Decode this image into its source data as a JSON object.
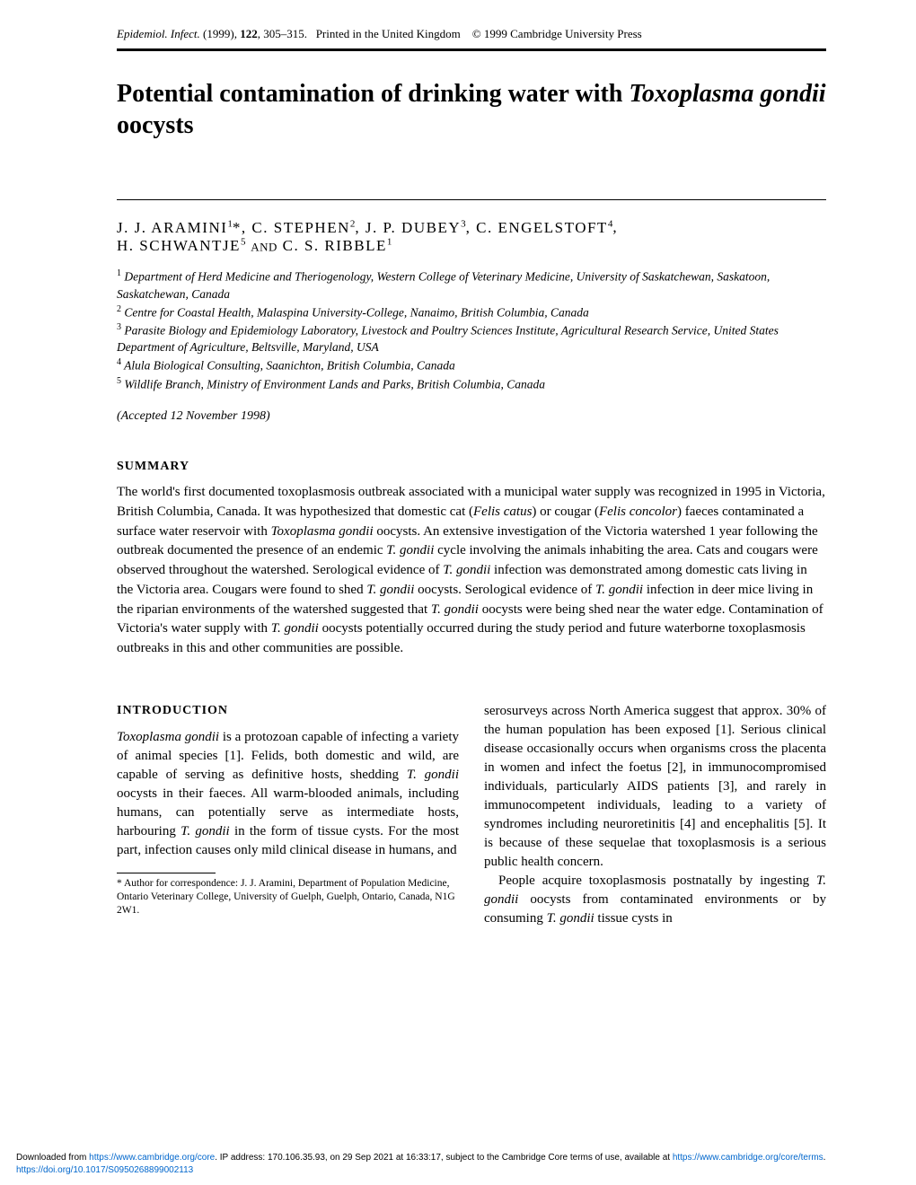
{
  "header": {
    "journal_abbrev": "Epidemiol. Infect.",
    "year": "(1999)",
    "volume": "122",
    "pages": "305–315.",
    "printed": "Printed in the United Kingdom",
    "copyright": "© 1999 Cambridge University Press"
  },
  "title": {
    "prefix": "Potential contamination of drinking water with ",
    "italic": "Toxoplasma gondii",
    "suffix": " oocysts"
  },
  "authors": {
    "line1_parts": [
      {
        "text": "J. J. ARAMINI",
        "sup": "1"
      },
      {
        "text": "*, C. STEPHEN",
        "sup": "2"
      },
      {
        "text": ", J. P. DUBEY",
        "sup": "3"
      },
      {
        "text": ", C. ENGELSTOFT",
        "sup": "4"
      },
      {
        "text": ",",
        "sup": ""
      }
    ],
    "line2_parts": [
      {
        "text": "H. SCHWANTJE",
        "sup": "5"
      },
      {
        "text": " ",
        "sup": ""
      }
    ],
    "line2_and": "AND",
    "line2_last": [
      {
        "text": " C. S. RIBBLE",
        "sup": "1"
      }
    ]
  },
  "affiliations": [
    {
      "num": "1",
      "text": "Department of Herd Medicine and Theriogenology, Western College of Veterinary Medicine, University of Saskatchewan, Saskatoon, Saskatchewan, Canada"
    },
    {
      "num": "2",
      "text": "Centre for Coastal Health, Malaspina University-College, Nanaimo, British Columbia, Canada"
    },
    {
      "num": "3",
      "text": "Parasite Biology and Epidemiology Laboratory, Livestock and Poultry Sciences Institute, Agricultural Research Service, United States Department of Agriculture, Beltsville, Maryland, USA"
    },
    {
      "num": "4",
      "text": "Alula Biological Consulting, Saanichton, British Columbia, Canada"
    },
    {
      "num": "5",
      "text": "Wildlife Branch, Ministry of Environment Lands and Parks, British Columbia, Canada"
    }
  ],
  "accepted": "(Accepted 12 November 1998)",
  "summary": {
    "heading": "SUMMARY",
    "text_parts": [
      {
        "t": "The world's first documented toxoplasmosis outbreak associated with a municipal water supply was recognized in 1995 in Victoria, British Columbia, Canada. It was hypothesized that domestic cat ("
      },
      {
        "t": "Felis catus",
        "i": true
      },
      {
        "t": ") or cougar ("
      },
      {
        "t": "Felis concolor",
        "i": true
      },
      {
        "t": ") faeces contaminated a surface water reservoir with "
      },
      {
        "t": "Toxoplasma gondii",
        "i": true
      },
      {
        "t": " oocysts. An extensive investigation of the Victoria watershed 1 year following the outbreak documented the presence of an endemic "
      },
      {
        "t": "T. gondii",
        "i": true
      },
      {
        "t": " cycle involving the animals inhabiting the area. Cats and cougars were observed throughout the watershed. Serological evidence of "
      },
      {
        "t": "T. gondii",
        "i": true
      },
      {
        "t": " infection was demonstrated among domestic cats living in the Victoria area. Cougars were found to shed "
      },
      {
        "t": "T. gondii",
        "i": true
      },
      {
        "t": " oocysts. Serological evidence of "
      },
      {
        "t": "T. gondii",
        "i": true
      },
      {
        "t": " infection in deer mice living in the riparian environments of the watershed suggested that "
      },
      {
        "t": "T. gondii",
        "i": true
      },
      {
        "t": " oocysts were being shed near the water edge. Contamination of Victoria's water supply with "
      },
      {
        "t": "T. gondii",
        "i": true
      },
      {
        "t": " oocysts potentially occurred during the study period and future waterborne toxoplasmosis outbreaks in this and other communities are possible."
      }
    ]
  },
  "introduction": {
    "heading": "INTRODUCTION",
    "col1_p1_parts": [
      {
        "t": "Toxoplasma gondii",
        "i": true
      },
      {
        "t": " is a protozoan capable of infecting a variety of animal species [1]. Felids, both domestic and wild, are capable of serving as definitive hosts, shedding "
      },
      {
        "t": "T. gondii",
        "i": true
      },
      {
        "t": " oocysts in their faeces. All warm-blooded animals, including humans, can potentially serve as intermediate hosts, harbouring "
      },
      {
        "t": "T. gondii",
        "i": true
      },
      {
        "t": " in the form of tissue cysts. For the most part, infection causes only mild clinical disease in humans, and"
      }
    ],
    "col2_p1_parts": [
      {
        "t": "serosurveys across North America suggest that approx. 30% of the human population has been exposed [1]. Serious clinical disease occasionally occurs when organisms cross the placenta in women and infect the foetus [2], in immunocompromised individuals, particularly AIDS patients [3], and rarely in immunocompetent individuals, leading to a variety of syndromes including neuroretinitis [4] and encephalitis [5]. It is because of these sequelae that toxoplasmosis is a serious public health concern."
      }
    ],
    "col2_p2_parts": [
      {
        "t": "People acquire toxoplasmosis postnatally by ingesting "
      },
      {
        "t": "T. gondii",
        "i": true
      },
      {
        "t": " oocysts from contaminated environments or by consuming "
      },
      {
        "t": "T. gondii",
        "i": true
      },
      {
        "t": " tissue cysts in"
      }
    ]
  },
  "footnote": "* Author for correspondence: J. J. Aramini, Department of Population Medicine, Ontario Veterinary College, University of Guelph, Guelph, Ontario, Canada, N1G 2W1.",
  "download": {
    "prefix": "Downloaded from ",
    "url1": "https://www.cambridge.org/core",
    "middle1": ". IP address: 170.106.35.93, on 29 Sep 2021 at 16:33:17, subject to the Cambridge Core terms of use, available at ",
    "url2": "https://www.cambridge.org/core/terms",
    "middle2": ". ",
    "url3": "https://doi.org/10.1017/S0950268899002113"
  },
  "colors": {
    "text": "#000000",
    "background": "#ffffff",
    "link": "#0066cc"
  }
}
